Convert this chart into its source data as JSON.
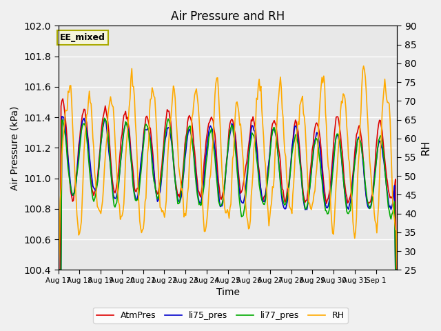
{
  "title": "Air Pressure and RH",
  "xlabel": "Time",
  "ylabel_left": "Air Pressure (kPa)",
  "ylabel_right": "RH",
  "ylim_left": [
    100.4,
    102.0
  ],
  "ylim_right": [
    25,
    90
  ],
  "yticks_left": [
    100.4,
    100.6,
    100.8,
    101.0,
    101.2,
    101.4,
    101.6,
    101.8,
    102.0
  ],
  "yticks_right": [
    25,
    30,
    35,
    40,
    45,
    50,
    55,
    60,
    65,
    70,
    75,
    80,
    85,
    90
  ],
  "date_labels": [
    "Aug 17",
    "Aug 18",
    "Aug 19",
    "Aug 20",
    "Aug 21",
    "Aug 22",
    "Aug 23",
    "Aug 24",
    "Aug 25",
    "Aug 26",
    "Aug 27",
    "Aug 28",
    "Aug 29",
    "Aug 30",
    "Aug 31",
    "Sep 1"
  ],
  "colors": {
    "AtmPres": "#dd0000",
    "li75_pres": "#0000cc",
    "li77_pres": "#00aa00",
    "RH": "#ffaa00"
  },
  "annotation_text": "EE_mixed",
  "annotation_edge_color": "#aaaa00",
  "annotation_face_color": "#f5f5dc",
  "background_color": "#e8e8e8",
  "fig_background_color": "#f0f0f0",
  "grid_color": "#ffffff",
  "linewidth": 1.2
}
